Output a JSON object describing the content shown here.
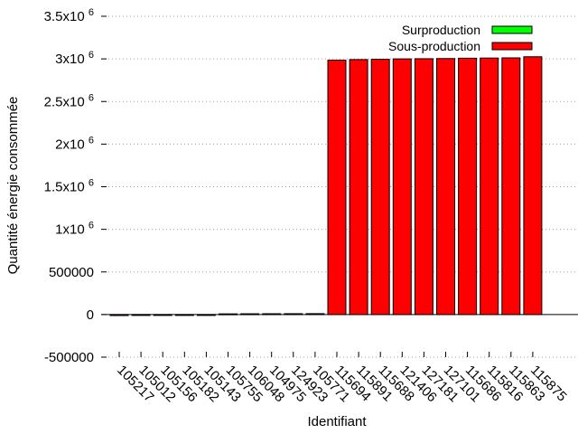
{
  "chart_data": {
    "type": "bar",
    "title": "",
    "xlabel": "Identifiant",
    "ylabel": "Quantité énergie consommée",
    "ylim": [
      -500000,
      3500000
    ],
    "yticks": [
      {
        "value": 3500000,
        "mantissa": "3.5x10",
        "exp": "6"
      },
      {
        "value": 3000000,
        "mantissa": "3x10",
        "exp": "6"
      },
      {
        "value": 2500000,
        "mantissa": "2.5x10",
        "exp": "6"
      },
      {
        "value": 2000000,
        "mantissa": "2x10",
        "exp": "6"
      },
      {
        "value": 1500000,
        "mantissa": "1.5x10",
        "exp": "6"
      },
      {
        "value": 1000000,
        "mantissa": "1x10",
        "exp": "6"
      },
      {
        "value": 500000,
        "mantissa": "500000",
        "exp": ""
      },
      {
        "value": 0,
        "mantissa": "0",
        "exp": ""
      },
      {
        "value": -500000,
        "mantissa": "-500000",
        "exp": ""
      }
    ],
    "grid": true,
    "legend_position": "top-right",
    "categories": [
      "105217",
      "105012",
      "105156",
      "105182",
      "105143",
      "105755",
      "106048",
      "104975",
      "124923",
      "105771",
      "115694",
      "115891",
      "115688",
      "121406",
      "127181",
      "127101",
      "115686",
      "115816",
      "115863",
      "115875"
    ],
    "series": [
      {
        "name": "Surproduction",
        "color": "#00ff00",
        "values": [
          0,
          0,
          0,
          0,
          0,
          0,
          0,
          0,
          0,
          0,
          0,
          0,
          0,
          0,
          0,
          0,
          0,
          0,
          0,
          0
        ]
      },
      {
        "name": "Sous-production",
        "color": "#ff0000",
        "values": [
          -12000,
          -8000,
          -2000,
          -1500,
          -1000,
          8000,
          9000,
          9500,
          10000,
          10500,
          2985000,
          2992000,
          2995000,
          3000000,
          3002000,
          3004000,
          3008000,
          3010000,
          3012000,
          3025000
        ]
      }
    ]
  }
}
